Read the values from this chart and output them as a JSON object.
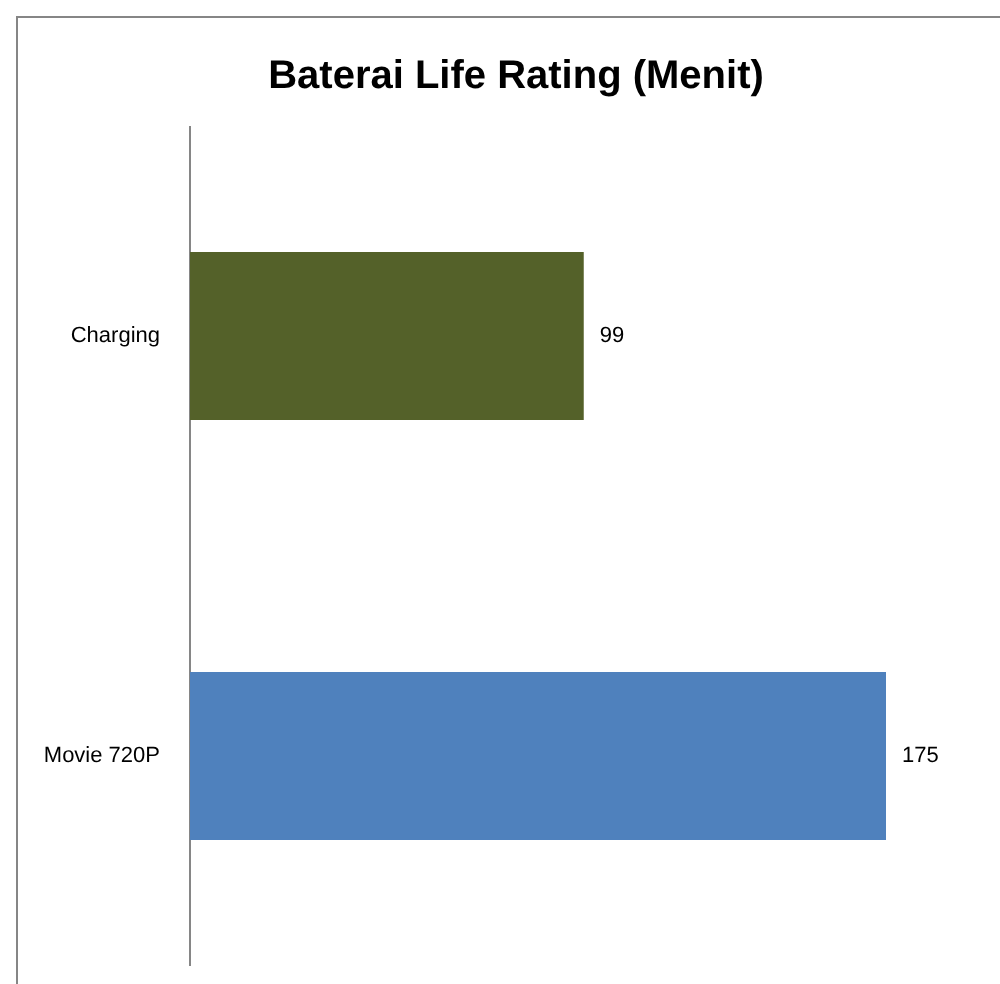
{
  "chart_data": {
    "type": "bar",
    "orientation": "horizontal",
    "title": "Baterai Life Rating (Menit)",
    "categories": [
      "Charging",
      "Movie 720P"
    ],
    "values": [
      99,
      175
    ],
    "colors": [
      "#546129",
      "#4f81bd"
    ],
    "data_labels": true
  }
}
